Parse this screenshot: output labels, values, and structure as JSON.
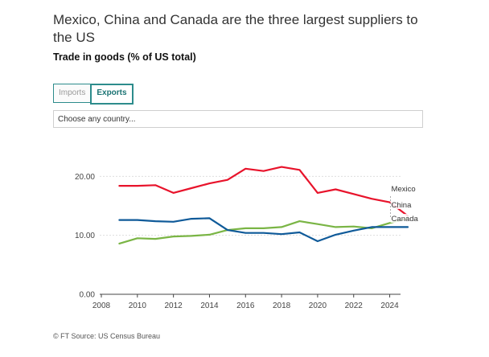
{
  "header": {
    "title": "Mexico, China and Canada are the three largest suppliers to the US",
    "subtitle": "Trade in goods (% of US total)"
  },
  "controls": {
    "imports_label": "Imports",
    "exports_label": "Exports",
    "active": "Exports",
    "search_placeholder": "Choose any country..."
  },
  "footer": {
    "source": "© FT Source: US Census Bureau"
  },
  "chart_data": {
    "type": "line",
    "xlabel": "",
    "ylabel": "",
    "xlim": [
      2008,
      2024.6
    ],
    "ylim": [
      0,
      24
    ],
    "x_ticks": [
      "2008",
      "2010",
      "2012",
      "2014",
      "2016",
      "2018",
      "2020",
      "2022",
      "2024"
    ],
    "y_ticks": [
      "0.00",
      "10.00",
      "20.00"
    ],
    "grid": true,
    "x": [
      2009,
      2010,
      2011,
      2012,
      2013,
      2014,
      2015,
      2016,
      2017,
      2018,
      2019,
      2020,
      2021,
      2022,
      2023,
      2024,
      2025
    ],
    "series": [
      {
        "name": "Mexico",
        "color": "#e8132b",
        "values": [
          18.4,
          18.4,
          18.5,
          17.2,
          18.0,
          18.8,
          19.4,
          21.3,
          20.9,
          21.6,
          21.1,
          17.2,
          17.8,
          17.0,
          16.2,
          15.6,
          13.3
        ]
      },
      {
        "name": "China",
        "color": "#7ab545",
        "values": [
          8.6,
          9.5,
          9.4,
          9.8,
          9.9,
          10.1,
          10.9,
          11.2,
          11.2,
          11.4,
          12.4,
          11.9,
          11.4,
          11.5,
          11.2,
          12.1,
          12.9
        ]
      },
      {
        "name": "Canada",
        "color": "#0f5a99",
        "values": [
          12.6,
          12.6,
          12.4,
          12.3,
          12.8,
          12.9,
          10.9,
          10.4,
          10.4,
          10.2,
          10.5,
          9.0,
          10.1,
          10.8,
          11.4,
          11.4,
          11.4
        ]
      }
    ]
  }
}
